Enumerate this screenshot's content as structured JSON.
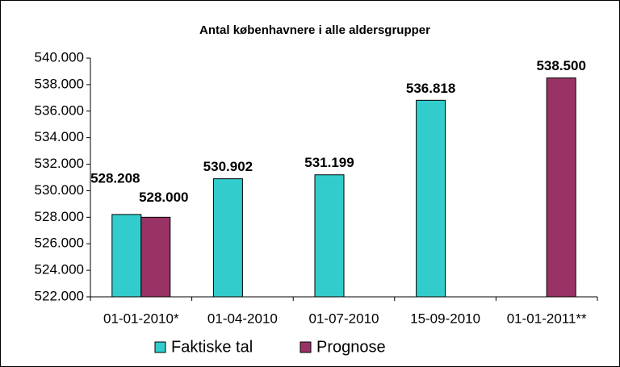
{
  "chart_data": {
    "type": "bar",
    "title": "Antal københavnere i alle aldersgrupper",
    "categories": [
      "01-01-2010*",
      "01-04-2010",
      "01-07-2010",
      "15-09-2010",
      "01-01-2011**"
    ],
    "series": [
      {
        "name": "Faktiske tal",
        "color": "#33CCCC",
        "values": [
          528208,
          530902,
          531199,
          536818,
          null
        ],
        "value_labels": [
          "528.208",
          "530.902",
          "531.199",
          "536.818",
          null
        ]
      },
      {
        "name": "Prognose",
        "color": "#993366",
        "values": [
          528000,
          null,
          null,
          null,
          538500
        ],
        "value_labels": [
          "528.000",
          null,
          null,
          null,
          "538.500"
        ]
      }
    ],
    "ylim": [
      522000,
      540000
    ],
    "yticks": [
      {
        "value": 522000,
        "label": "522.000"
      },
      {
        "value": 524000,
        "label": "524.000"
      },
      {
        "value": 526000,
        "label": "526.000"
      },
      {
        "value": 528000,
        "label": "528.000"
      },
      {
        "value": 530000,
        "label": "530.000"
      },
      {
        "value": 532000,
        "label": "532.000"
      },
      {
        "value": 534000,
        "label": "534.000"
      },
      {
        "value": 536000,
        "label": "536.000"
      },
      {
        "value": 538000,
        "label": "538.000"
      },
      {
        "value": 540000,
        "label": "540.000"
      }
    ],
    "legend": "bottom"
  }
}
